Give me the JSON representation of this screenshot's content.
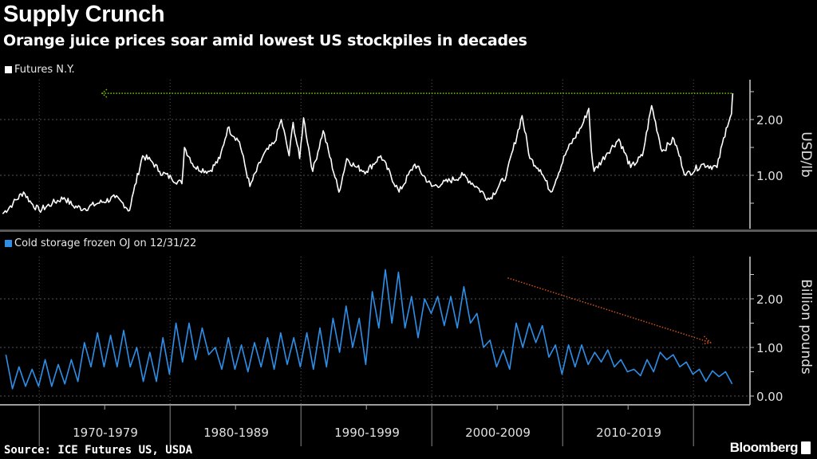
{
  "title": "Supply Crunch",
  "subtitle": "Orange juice prices soar amid lowest US stockpiles in decades",
  "source": "Source: ICE Futures US, USDA",
  "brand": "Bloomberg",
  "colors": {
    "price": "#ffffff",
    "storage": "#2d8fe8",
    "green_line": "#7ac800",
    "red_arrow": "#d0541c",
    "grid": "#555555"
  },
  "chart_data": [
    {
      "type": "line",
      "title": "Futures N.Y.",
      "legend": "Futures N.Y.",
      "ylabel": "USD/lb",
      "ylim": [
        0,
        2.7
      ],
      "yticks": [
        "1.00",
        "2.00"
      ],
      "ytick_values": [
        1,
        2
      ],
      "xlim": [
        1967,
        2023.7
      ],
      "grid": true,
      "reference_line": {
        "value": 2.47,
        "from_year": 1974.8,
        "to_year": 2023.0,
        "style": "dotted arrow pointing left"
      },
      "series": [
        {
          "name": "Futures N.Y.",
          "x": [
            1967.2,
            1968.0,
            1968.8,
            1969.4,
            1970.0,
            1971.0,
            1971.9,
            1972.6,
            1973.4,
            1974.5,
            1975.8,
            1976.4,
            1976.9,
            1977.2,
            1977.9,
            1978.6,
            1979.2,
            1980.1,
            1980.9,
            1981.1,
            1981.9,
            1983.0,
            1983.8,
            1984.4,
            1985.3,
            1986.1,
            1987.1,
            1988.0,
            1988.5,
            1989.1,
            1989.4,
            1989.9,
            1990.2,
            1990.9,
            1991.7,
            1992.9,
            1993.5,
            1994.2,
            1995.0,
            1996.1,
            1997.5,
            1998.7,
            2000.0,
            2000.8,
            2002.4,
            2003.4,
            2004.4,
            2005.7,
            2006.9,
            2007.5,
            2008.3,
            2009.1,
            2010.3,
            2011.5,
            2012.0,
            2012.2,
            2012.4,
            2013.4,
            2014.3,
            2015.2,
            2016.1,
            2016.8,
            2017.6,
            2018.5,
            2019.4,
            2020.7,
            2021.8,
            2022.5,
            2022.9,
            2023.0
          ],
          "y": [
            0.31,
            0.5,
            0.7,
            0.5,
            0.37,
            0.5,
            0.6,
            0.45,
            0.4,
            0.5,
            0.6,
            0.5,
            0.37,
            0.7,
            1.35,
            1.25,
            1.07,
            0.95,
            0.85,
            1.5,
            1.14,
            1.07,
            1.3,
            1.85,
            1.6,
            0.8,
            1.35,
            1.6,
            2.0,
            1.35,
            1.95,
            1.3,
            2.03,
            1.07,
            1.8,
            0.7,
            1.3,
            1.15,
            1.07,
            1.35,
            0.7,
            1.2,
            0.8,
            0.85,
            1.0,
            0.8,
            0.57,
            1.0,
            2.07,
            1.3,
            1.1,
            0.7,
            1.43,
            1.9,
            2.2,
            1.43,
            1.07,
            1.4,
            1.65,
            1.14,
            1.35,
            2.25,
            1.43,
            1.65,
            1.0,
            1.2,
            1.14,
            1.85,
            2.1,
            2.47
          ]
        }
      ]
    },
    {
      "type": "line",
      "title": "Cold storage frozen OJ on 12/31/22",
      "legend": "Cold storage frozen OJ on 12/31/22",
      "ylabel": "Billion pounds",
      "ylim": [
        0,
        2.9
      ],
      "yticks": [
        "0.00",
        "1.00",
        "2.00"
      ],
      "ytick_values": [
        0,
        1,
        2
      ],
      "xlim": [
        1967,
        2023.7
      ],
      "xticks": [
        "1970-1979",
        "1980-1989",
        "1990-1999",
        "2000-2009",
        "2010-2019"
      ],
      "decade_starts": [
        1970,
        1980,
        1990,
        2000,
        2010,
        2020
      ],
      "grid": true,
      "trend_arrow": {
        "from": [
          2005.8,
          2.43
        ],
        "to": [
          2021.3,
          1.1
        ],
        "style": "dotted arrow"
      },
      "series": [
        {
          "name": "Cold storage frozen OJ",
          "years": [
            1967,
            1968,
            1969,
            1970,
            1971,
            1972,
            1973,
            1974,
            1975,
            1976,
            1977,
            1978,
            1979,
            1980,
            1981,
            1982,
            1983,
            1984,
            1985,
            1986,
            1987,
            1988,
            1989,
            1990,
            1991,
            1992,
            1993,
            1994,
            1995,
            1996,
            1997,
            1998,
            1999,
            2000,
            2001,
            2002,
            2003,
            2004,
            2005,
            2006,
            2007,
            2008,
            2009,
            2010,
            2011,
            2012,
            2013,
            2014,
            2015,
            2016,
            2017,
            2018,
            2019,
            2020,
            2021,
            2022
          ],
          "annual_peak": [
            0.85,
            0.6,
            0.55,
            0.75,
            0.65,
            0.75,
            1.1,
            1.3,
            1.25,
            1.35,
            1.0,
            0.9,
            1.2,
            1.5,
            1.5,
            1.4,
            1.0,
            1.2,
            1.05,
            1.1,
            1.2,
            1.3,
            1.2,
            1.3,
            1.4,
            1.6,
            1.85,
            1.6,
            2.15,
            2.6,
            2.55,
            2.05,
            2.0,
            2.05,
            2.05,
            2.25,
            1.7,
            1.15,
            0.95,
            1.5,
            1.5,
            1.45,
            1.05,
            1.05,
            1.05,
            0.9,
            0.95,
            0.75,
            0.55,
            0.75,
            0.9,
            0.85,
            0.7,
            0.55,
            0.52,
            0.5
          ],
          "annual_trough": [
            0.15,
            0.2,
            0.2,
            0.2,
            0.25,
            0.3,
            0.6,
            0.6,
            0.6,
            0.6,
            0.3,
            0.3,
            0.45,
            0.7,
            0.75,
            0.85,
            0.55,
            0.55,
            0.5,
            0.6,
            0.55,
            0.65,
            0.6,
            0.55,
            0.6,
            0.9,
            1.0,
            0.65,
            1.4,
            1.5,
            1.4,
            1.2,
            1.7,
            1.45,
            1.4,
            1.5,
            1.0,
            0.6,
            0.55,
            1.0,
            1.1,
            0.8,
            0.45,
            0.6,
            0.65,
            0.7,
            0.6,
            0.5,
            0.42,
            0.5,
            0.75,
            0.6,
            0.45,
            0.3,
            0.4,
            0.25
          ]
        }
      ]
    }
  ]
}
